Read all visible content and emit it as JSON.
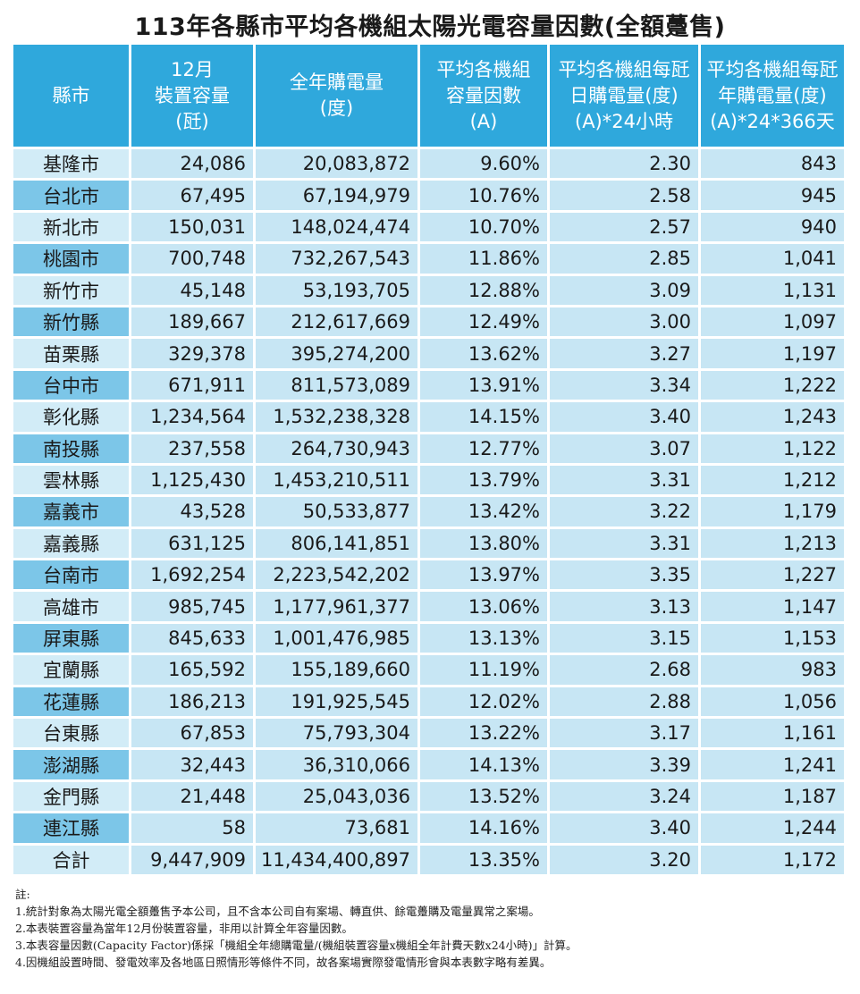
{
  "title": "113年各縣市平均各機組太陽光電容量因數(全額躉售)",
  "headers": [
    [
      "縣市"
    ],
    [
      "12月",
      "裝置容量",
      "(瓩)"
    ],
    [
      "全年購電量",
      "(度)"
    ],
    [
      "平均各機組",
      "容量因數",
      "(A)"
    ],
    [
      "平均各機組每瓩",
      "日購電量(度)",
      "(A)*24小時"
    ],
    [
      "平均各機組每瓩",
      "年購電量(度)",
      "(A)*24*366天"
    ]
  ],
  "rows": [
    [
      "基隆市",
      "24,086",
      "20,083,872",
      "9.60%",
      "2.30",
      "843"
    ],
    [
      "台北市",
      "67,495",
      "67,194,979",
      "10.76%",
      "2.58",
      "945"
    ],
    [
      "新北市",
      "150,031",
      "148,024,474",
      "10.70%",
      "2.57",
      "940"
    ],
    [
      "桃園市",
      "700,748",
      "732,267,543",
      "11.86%",
      "2.85",
      "1,041"
    ],
    [
      "新竹市",
      "45,148",
      "53,193,705",
      "12.88%",
      "3.09",
      "1,131"
    ],
    [
      "新竹縣",
      "189,667",
      "212,617,669",
      "12.49%",
      "3.00",
      "1,097"
    ],
    [
      "苗栗縣",
      "329,378",
      "395,274,200",
      "13.62%",
      "3.27",
      "1,197"
    ],
    [
      "台中市",
      "671,911",
      "811,573,089",
      "13.91%",
      "3.34",
      "1,222"
    ],
    [
      "彰化縣",
      "1,234,564",
      "1,532,238,328",
      "14.15%",
      "3.40",
      "1,243"
    ],
    [
      "南投縣",
      "237,558",
      "264,730,943",
      "12.77%",
      "3.07",
      "1,122"
    ],
    [
      "雲林縣",
      "1,125,430",
      "1,453,210,511",
      "13.79%",
      "3.31",
      "1,212"
    ],
    [
      "嘉義市",
      "43,528",
      "50,533,877",
      "13.42%",
      "3.22",
      "1,179"
    ],
    [
      "嘉義縣",
      "631,125",
      "806,141,851",
      "13.80%",
      "3.31",
      "1,213"
    ],
    [
      "台南市",
      "1,692,254",
      "2,223,542,202",
      "13.97%",
      "3.35",
      "1,227"
    ],
    [
      "高雄市",
      "985,745",
      "1,177,961,377",
      "13.06%",
      "3.13",
      "1,147"
    ],
    [
      "屏東縣",
      "845,633",
      "1,001,476,985",
      "13.13%",
      "3.15",
      "1,153"
    ],
    [
      "宜蘭縣",
      "165,592",
      "155,189,660",
      "11.19%",
      "2.68",
      "983"
    ],
    [
      "花蓮縣",
      "186,213",
      "191,925,545",
      "12.02%",
      "2.88",
      "1,056"
    ],
    [
      "台東縣",
      "67,853",
      "75,793,304",
      "13.22%",
      "3.17",
      "1,161"
    ],
    [
      "澎湖縣",
      "32,443",
      "36,310,066",
      "14.13%",
      "3.39",
      "1,241"
    ],
    [
      "金門縣",
      "21,448",
      "25,043,036",
      "13.52%",
      "3.24",
      "1,187"
    ],
    [
      "連江縣",
      "58",
      "73,681",
      "14.16%",
      "3.40",
      "1,244"
    ]
  ],
  "total": [
    "合計",
    "9,447,909",
    "11,434,400,897",
    "13.35%",
    "3.20",
    "1,172"
  ],
  "notes": [
    "註:",
    "1.統計對象為太陽光電全額躉售予本公司，且不含本公司自有案場、轉直供、餘電躉購及電量異常之案場。",
    "2.本表裝置容量為當年12月份裝置容量，非用以計算全年容量因數。",
    "3.本表容量因數(Capacity Factor)係採「機組全年總購電量/(機組裝置容量x機組全年計費天數x24小時)」計算。",
    "4.因機組設置時間、發電效率及各地區日照情形等條件不同，故各案場實際發電情形會與本表數字略有差異。"
  ],
  "colors": {
    "header_bg": "#2fa8dc",
    "cell_bg": "#c7e6f4",
    "city_bg": "#d2ecf7",
    "city_alt_bg": "#7cc6e8"
  }
}
